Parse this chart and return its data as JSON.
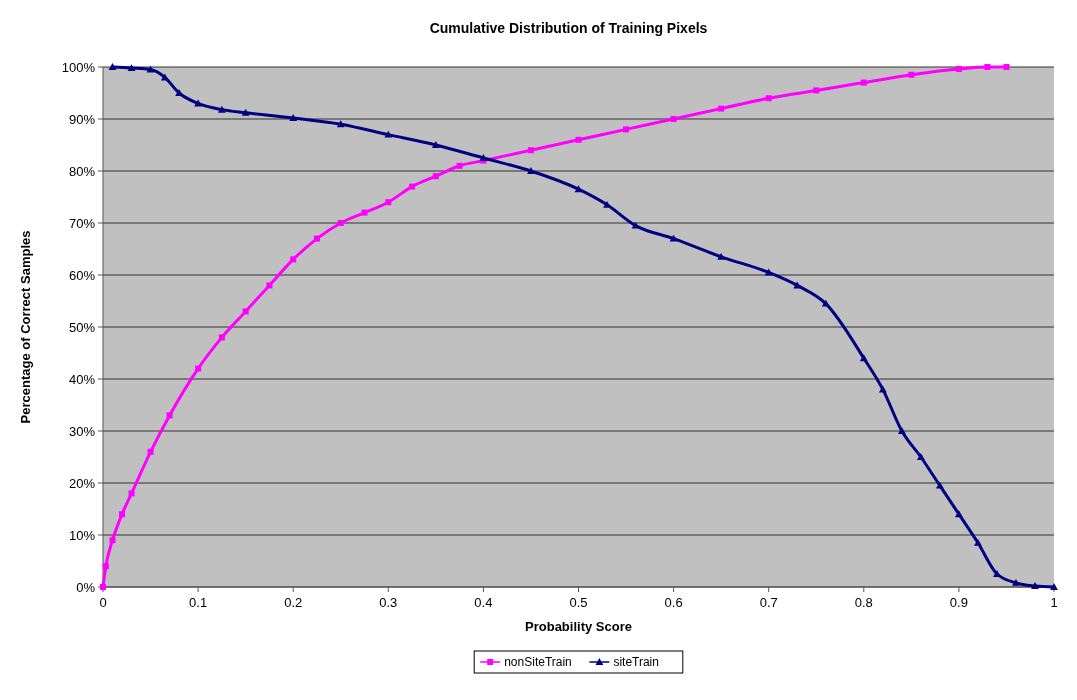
{
  "chart_data": {
    "type": "line",
    "title": "Cumulative Distribution of Training Pixels",
    "xlabel": "Probability Score",
    "ylabel": "Percentage of Correct Samples",
    "xlim": [
      0,
      1
    ],
    "xticks": [
      0,
      0.1,
      0.2,
      0.3,
      0.4,
      0.5,
      0.6,
      0.7,
      0.8,
      0.9,
      1
    ],
    "ylim": [
      0,
      100
    ],
    "yticks": [
      {
        "value": 0,
        "label": "0%"
      },
      {
        "value": 10,
        "label": "10%"
      },
      {
        "value": 20,
        "label": "20%"
      },
      {
        "value": 30,
        "label": "30%"
      },
      {
        "value": 40,
        "label": "40%"
      },
      {
        "value": 50,
        "label": "50%"
      },
      {
        "value": 60,
        "label": "60%"
      },
      {
        "value": 70,
        "label": "70%"
      },
      {
        "value": 80,
        "label": "80%"
      },
      {
        "value": 90,
        "label": "90%"
      },
      {
        "value": 100,
        "label": "100%"
      }
    ],
    "grid": "y",
    "legend": "bottom",
    "series": [
      {
        "name": "nonSiteTrain",
        "color": "#ff00ff",
        "marker": "square",
        "x": [
          0,
          0.003,
          0.01,
          0.02,
          0.03,
          0.05,
          0.07,
          0.1,
          0.125,
          0.15,
          0.175,
          0.2,
          0.225,
          0.25,
          0.275,
          0.3,
          0.325,
          0.35,
          0.375,
          0.4,
          0.45,
          0.5,
          0.55,
          0.6,
          0.65,
          0.7,
          0.75,
          0.8,
          0.85,
          0.9,
          0.93,
          0.95
        ],
        "values": [
          0,
          4,
          9,
          14,
          18,
          26,
          33,
          42,
          48,
          53,
          58,
          63,
          67,
          70,
          72,
          74,
          77,
          79,
          81,
          82,
          84,
          86,
          88,
          90,
          92,
          94,
          95.5,
          97,
          98.5,
          99.6,
          100,
          100
        ]
      },
      {
        "name": "siteTrain",
        "color": "#000080",
        "marker": "triangle",
        "x": [
          0.01,
          0.03,
          0.05,
          0.065,
          0.08,
          0.1,
          0.125,
          0.15,
          0.2,
          0.25,
          0.3,
          0.35,
          0.4,
          0.45,
          0.5,
          0.53,
          0.56,
          0.6,
          0.65,
          0.7,
          0.73,
          0.76,
          0.8,
          0.82,
          0.84,
          0.86,
          0.88,
          0.9,
          0.92,
          0.94,
          0.96,
          0.98,
          1
        ],
        "values": [
          100,
          99.8,
          99.5,
          98,
          95,
          93,
          91.8,
          91.2,
          90.2,
          89,
          87,
          85,
          82.5,
          80,
          76.5,
          73.5,
          69.5,
          67,
          63.5,
          60.5,
          58,
          54.5,
          44,
          38,
          30,
          25,
          19.5,
          14,
          8.5,
          2.5,
          0.8,
          0.2,
          0
        ]
      }
    ]
  }
}
